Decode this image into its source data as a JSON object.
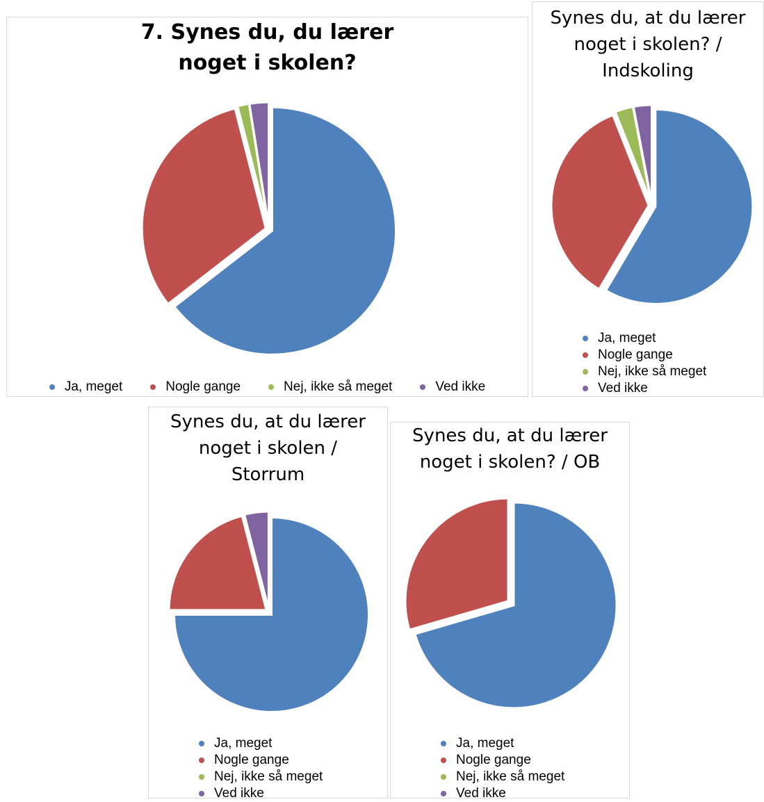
{
  "legend_labels": [
    "Ja, meget",
    "Nogle gange",
    "Nej, ikke så meget",
    "Ved ikke"
  ],
  "colors": [
    "#4f81bd",
    "#c0504d",
    "#9bbb59",
    "#8064a2"
  ],
  "chart_data": [
    {
      "type": "pie",
      "title": "7. Synes du, du lærer noget i skolen?",
      "categories": [
        "Ja, meget",
        "Nogle gange",
        "Nej, ikke så meget",
        "Ved ikke"
      ],
      "values": [
        64.5,
        31.5,
        1.5,
        2.5
      ],
      "legend": "bottom"
    },
    {
      "type": "pie",
      "title": "Synes du, at du lærer noget i skolen? / Indskoling",
      "categories": [
        "Ja, meget",
        "Nogle gange",
        "Nej, ikke så meget",
        "Ved ikke"
      ],
      "values": [
        58.5,
        35.5,
        3,
        3
      ],
      "legend": "bottom"
    },
    {
      "type": "pie",
      "title": "Synes du, at du lærer noget i skolen / Storrum",
      "categories": [
        "Ja, meget",
        "Nogle gange",
        "Nej, ikke så meget",
        "Ved ikke"
      ],
      "values": [
        75,
        21,
        0,
        4
      ],
      "legend": "bottom"
    },
    {
      "type": "pie",
      "title": "Synes du, at du lærer noget i skolen? / OB",
      "categories": [
        "Ja, meget",
        "Nogle gange",
        "Nej, ikke så meget",
        "Ved ikke"
      ],
      "values": [
        70.5,
        29.5,
        0,
        0
      ],
      "legend": "bottom"
    }
  ]
}
